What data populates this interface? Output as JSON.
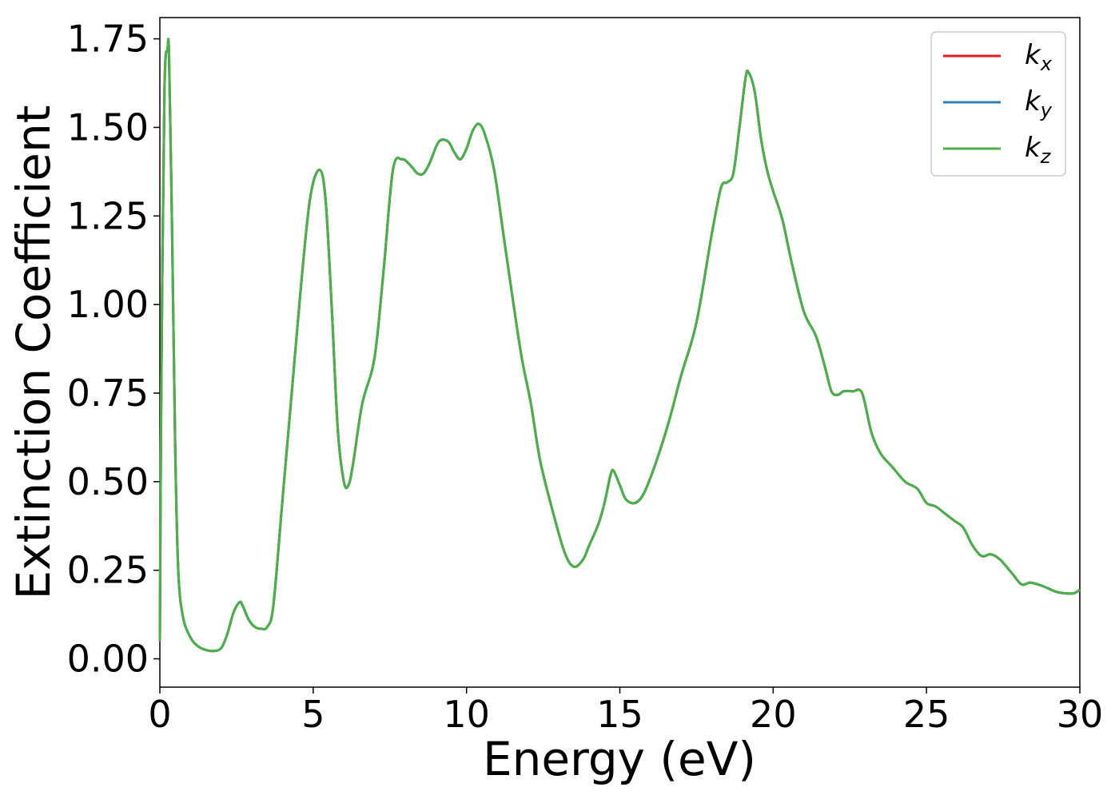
{
  "chart_data": {
    "type": "line",
    "xlabel": "Energy (eV)",
    "ylabel": "Extinction Coefficient",
    "xlim": [
      0,
      30
    ],
    "ylim": [
      -0.08,
      1.81
    ],
    "xticks": [
      0,
      5,
      10,
      15,
      20,
      25,
      30
    ],
    "xtick_labels": [
      "0",
      "5",
      "10",
      "15",
      "20",
      "25",
      "30"
    ],
    "yticks": [
      0.0,
      0.25,
      0.5,
      0.75,
      1.0,
      1.25,
      1.5,
      1.75
    ],
    "ytick_labels": [
      "0.00",
      "0.25",
      "0.50",
      "0.75",
      "1.00",
      "1.25",
      "1.50",
      "1.75"
    ],
    "grid": false,
    "legend_position": "top-right",
    "series": [
      {
        "name": "k",
        "sub": "x",
        "color": "#e41a1c"
      },
      {
        "name": "k",
        "sub": "y",
        "color": "#377eb8"
      },
      {
        "name": "k",
        "sub": "z",
        "color": "#4daf4a"
      }
    ],
    "x": [
      0,
      0.05,
      0.15,
      0.25,
      0.3,
      0.4,
      0.5,
      0.6,
      0.75,
      1.0,
      1.25,
      1.5,
      1.75,
      2.0,
      2.2,
      2.4,
      2.6,
      2.7,
      2.9,
      3.1,
      3.3,
      3.5,
      3.7,
      4.0,
      4.3,
      4.6,
      4.9,
      5.2,
      5.4,
      5.6,
      5.8,
      6.0,
      6.15,
      6.3,
      6.6,
      7.0,
      7.3,
      7.6,
      7.9,
      8.2,
      8.4,
      8.6,
      8.8,
      9.1,
      9.4,
      9.6,
      9.8,
      10.0,
      10.2,
      10.4,
      10.6,
      10.9,
      11.2,
      11.5,
      11.8,
      12.1,
      12.4,
      12.8,
      13.2,
      13.5,
      13.8,
      14.0,
      14.3,
      14.5,
      14.7,
      14.8,
      15.0,
      15.2,
      15.5,
      15.8,
      16.2,
      16.6,
      17.0,
      17.5,
      18.0,
      18.3,
      18.5,
      18.7,
      18.9,
      19.1,
      19.2,
      19.4,
      19.6,
      19.8,
      20.0,
      20.3,
      20.6,
      21.0,
      21.4,
      21.7,
      21.9,
      22.1,
      22.3,
      22.6,
      22.9,
      23.2,
      23.5,
      23.9,
      24.3,
      24.7,
      25.0,
      25.3,
      25.6,
      25.9,
      26.2,
      26.5,
      26.8,
      27.1,
      27.4,
      27.8,
      28.1,
      28.4,
      28.8,
      29.2,
      29.5,
      29.8,
      30.0
    ],
    "y": [
      0.05,
      0.8,
      1.6,
      1.72,
      1.7,
      1.2,
      0.6,
      0.25,
      0.12,
      0.06,
      0.035,
      0.025,
      0.022,
      0.03,
      0.07,
      0.13,
      0.16,
      0.15,
      0.11,
      0.09,
      0.085,
      0.09,
      0.15,
      0.45,
      0.75,
      1.05,
      1.3,
      1.38,
      1.3,
      1.0,
      0.65,
      0.5,
      0.49,
      0.55,
      0.72,
      0.85,
      1.1,
      1.38,
      1.41,
      1.39,
      1.37,
      1.37,
      1.4,
      1.46,
      1.46,
      1.43,
      1.41,
      1.44,
      1.49,
      1.51,
      1.48,
      1.38,
      1.2,
      1.02,
      0.85,
      0.72,
      0.56,
      0.42,
      0.3,
      0.26,
      0.28,
      0.32,
      0.38,
      0.44,
      0.52,
      0.53,
      0.49,
      0.45,
      0.44,
      0.47,
      0.56,
      0.67,
      0.8,
      0.95,
      1.2,
      1.33,
      1.345,
      1.37,
      1.5,
      1.64,
      1.655,
      1.6,
      1.47,
      1.38,
      1.32,
      1.24,
      1.12,
      0.98,
      0.91,
      0.82,
      0.755,
      0.745,
      0.755,
      0.755,
      0.75,
      0.64,
      0.58,
      0.54,
      0.5,
      0.48,
      0.44,
      0.43,
      0.41,
      0.39,
      0.37,
      0.32,
      0.29,
      0.295,
      0.28,
      0.24,
      0.21,
      0.215,
      0.205,
      0.19,
      0.185,
      0.185,
      0.195
    ]
  }
}
